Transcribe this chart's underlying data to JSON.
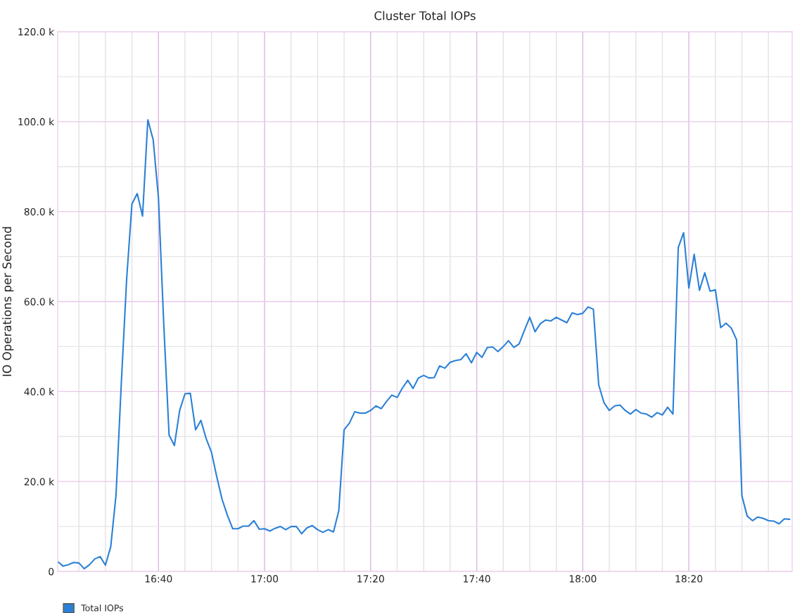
{
  "chart_data": {
    "type": "line",
    "title": "Cluster Total IOPs",
    "ylabel": "IO Operations per Second",
    "x": [
      16.35,
      16.3667,
      16.3833,
      16.4,
      16.4167,
      16.4333,
      16.45,
      16.4667,
      16.4833,
      16.5,
      16.5167,
      16.5333,
      16.55,
      16.5667,
      16.5833,
      16.6,
      16.6167,
      16.6333,
      16.65,
      16.6667,
      16.6833,
      16.7,
      16.7167,
      16.7333,
      16.75,
      16.7667,
      16.7833,
      16.8,
      16.8167,
      16.8333,
      16.85,
      16.8667,
      16.8833,
      16.9,
      16.9167,
      16.9333,
      16.95,
      16.9667,
      16.9833,
      17.0,
      17.0167,
      17.0333,
      17.05,
      17.0667,
      17.0833,
      17.1,
      17.1167,
      17.1333,
      17.15,
      17.1667,
      17.1833,
      17.2,
      17.2167,
      17.2333,
      17.25,
      17.2667,
      17.2833,
      17.3,
      17.3167,
      17.3333,
      17.35,
      17.3667,
      17.3833,
      17.4,
      17.4167,
      17.4333,
      17.45,
      17.4667,
      17.4833,
      17.5,
      17.5167,
      17.5333,
      17.55,
      17.5667,
      17.5833,
      17.6,
      17.6167,
      17.6333,
      17.65,
      17.6667,
      17.6833,
      17.7,
      17.7167,
      17.7333,
      17.75,
      17.7667,
      17.7833,
      17.8,
      17.8167,
      17.8333,
      17.85,
      17.8667,
      17.8833,
      17.9,
      17.9167,
      17.9333,
      17.95,
      17.9667,
      17.9833,
      18.0,
      18.0167,
      18.0333,
      18.05,
      18.0667,
      18.0833,
      18.1,
      18.1167,
      18.1333,
      18.15,
      18.1667,
      18.1833,
      18.2,
      18.2167,
      18.2333,
      18.25,
      18.2667,
      18.2833,
      18.3,
      18.3167,
      18.3333,
      18.35,
      18.3667,
      18.3833,
      18.4,
      18.4167,
      18.4333,
      18.45,
      18.4667,
      18.4833,
      18.5,
      18.5167,
      18.5333,
      18.55,
      18.5667,
      18.5833,
      18.6,
      18.6167,
      18.6333,
      18.65
    ],
    "series": [
      {
        "name": "Total IOPs",
        "color": "#2b80d6",
        "values": [
          2200,
          1200,
          1500,
          2000,
          1900,
          600,
          1500,
          2800,
          3300,
          1400,
          5500,
          17000,
          42000,
          65000,
          81700,
          84000,
          79000,
          100400,
          96000,
          83000,
          55000,
          30300,
          28000,
          35800,
          39500,
          39600,
          31500,
          33600,
          29500,
          26500,
          21000,
          16000,
          12500,
          9500,
          9500,
          10100,
          10100,
          11300,
          9400,
          9500,
          9000,
          9600,
          10000,
          9300,
          10000,
          10000,
          8400,
          9700,
          10200,
          9300,
          8700,
          9300,
          8800,
          13500,
          31500,
          33000,
          35500,
          35200,
          35200,
          35800,
          36800,
          36200,
          37800,
          39200,
          38700,
          40800,
          42500,
          40700,
          43000,
          43600,
          43000,
          43100,
          45700,
          45200,
          46500,
          46900,
          47100,
          48400,
          46400,
          48700,
          47600,
          49800,
          49900,
          48900,
          50000,
          51300,
          49800,
          50600,
          53600,
          56500,
          53300,
          55100,
          55900,
          55700,
          56500,
          55900,
          55300,
          57500,
          57100,
          57400,
          58800,
          58300,
          41500,
          37500,
          35800,
          36800,
          37000,
          35800,
          35000,
          36000,
          35200,
          35000,
          34300,
          35300,
          34800,
          36500,
          35000,
          72000,
          75300,
          63000,
          70500,
          62500,
          66400,
          62300,
          62600,
          54200,
          55200,
          54100,
          51500,
          16800,
          12300,
          11300,
          12100,
          11800,
          11300,
          11200,
          10600,
          11700,
          11600
        ]
      }
    ],
    "xlim": [
      16.35,
      18.658
    ],
    "xticks": [
      {
        "value": 16.4167,
        "label": null
      },
      {
        "value": 16.5,
        "label": null
      },
      {
        "value": 16.5833,
        "label": null
      },
      {
        "value": 16.6667,
        "label": "16:40"
      },
      {
        "value": 16.75,
        "label": null
      },
      {
        "value": 16.8333,
        "label": null
      },
      {
        "value": 16.9167,
        "label": null
      },
      {
        "value": 17.0,
        "label": "17:00"
      },
      {
        "value": 17.0833,
        "label": null
      },
      {
        "value": 17.1667,
        "label": null
      },
      {
        "value": 17.25,
        "label": null
      },
      {
        "value": 17.3333,
        "label": "17:20"
      },
      {
        "value": 17.4167,
        "label": null
      },
      {
        "value": 17.5,
        "label": null
      },
      {
        "value": 17.5833,
        "label": null
      },
      {
        "value": 17.6667,
        "label": "17:40"
      },
      {
        "value": 17.75,
        "label": null
      },
      {
        "value": 17.8333,
        "label": null
      },
      {
        "value": 17.9167,
        "label": null
      },
      {
        "value": 18.0,
        "label": "18:00"
      },
      {
        "value": 18.0833,
        "label": null
      },
      {
        "value": 18.1667,
        "label": null
      },
      {
        "value": 18.25,
        "label": null
      },
      {
        "value": 18.3333,
        "label": "18:20"
      },
      {
        "value": 18.4167,
        "label": null
      },
      {
        "value": 18.5,
        "label": null
      },
      {
        "value": 18.5833,
        "label": null
      }
    ],
    "ylim": [
      0,
      120000
    ],
    "yticks": [
      {
        "value": 0,
        "label": "0"
      },
      {
        "value": 10000,
        "label": null
      },
      {
        "value": 20000,
        "label": "20.0 k"
      },
      {
        "value": 30000,
        "label": null
      },
      {
        "value": 40000,
        "label": "40.0 k"
      },
      {
        "value": 50000,
        "label": null
      },
      {
        "value": 60000,
        "label": "60.0 k"
      },
      {
        "value": 70000,
        "label": null
      },
      {
        "value": 80000,
        "label": "80.0 k"
      },
      {
        "value": 90000,
        "label": null
      },
      {
        "value": 100000,
        "label": "100.0 k"
      },
      {
        "value": 110000,
        "label": null
      },
      {
        "value": 120000,
        "label": "120.0 k"
      }
    ],
    "grid": true,
    "legend": "bottom left",
    "marker": "none",
    "line_style": "solid"
  }
}
